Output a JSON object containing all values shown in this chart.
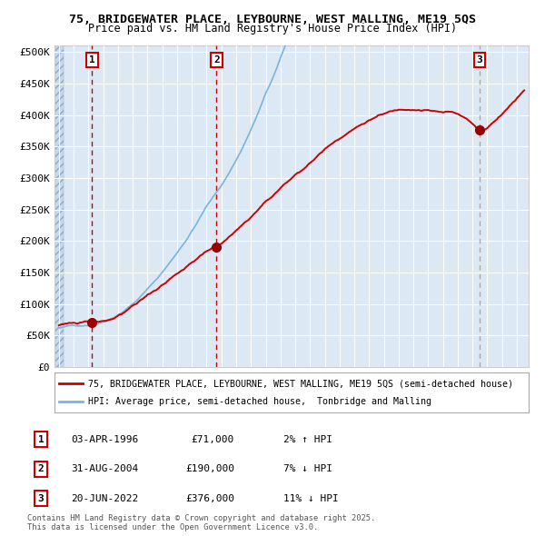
{
  "title_line1": "75, BRIDGEWATER PLACE, LEYBOURNE, WEST MALLING, ME19 5QS",
  "title_line2": "Price paid vs. HM Land Registry's House Price Index (HPI)",
  "yticks": [
    0,
    50000,
    100000,
    150000,
    200000,
    250000,
    300000,
    350000,
    400000,
    450000,
    500000
  ],
  "ytick_labels": [
    "£0",
    "£50K",
    "£100K",
    "£150K",
    "£200K",
    "£250K",
    "£300K",
    "£350K",
    "£400K",
    "£450K",
    "£500K"
  ],
  "xlim_start": 1993.7,
  "xlim_end": 2025.8,
  "ylim_min": 0,
  "ylim_max": 510000,
  "hpi_color": "#7ab4d8",
  "price_color": "#cc0000",
  "marker_color": "#990000",
  "sale1_year": 1996.25,
  "sale1_price": 71000,
  "sale1_label": "1",
  "sale1_date": "03-APR-1996",
  "sale1_pct": "2% ↑ HPI",
  "sale2_year": 2004.67,
  "sale2_price": 190000,
  "sale2_label": "2",
  "sale2_date": "31-AUG-2004",
  "sale2_pct": "7% ↓ HPI",
  "sale3_year": 2022.47,
  "sale3_price": 376000,
  "sale3_label": "3",
  "sale3_date": "20-JUN-2022",
  "sale3_pct": "11% ↓ HPI",
  "legend_label1": "75, BRIDGEWATER PLACE, LEYBOURNE, WEST MALLING, ME19 5QS (semi-detached house)",
  "legend_label2": "HPI: Average price, semi-detached house,  Tonbridge and Malling",
  "footer_text": "Contains HM Land Registry data © Crown copyright and database right 2025.\nThis data is licensed under the Open Government Licence v3.0.",
  "bg_color": "#dce9f5",
  "grid_color": "#ffffff",
  "box_edge_color": "#cc0000",
  "dashed_color_red": "#cc0000",
  "dashed_color_gray": "#aaaaaa"
}
